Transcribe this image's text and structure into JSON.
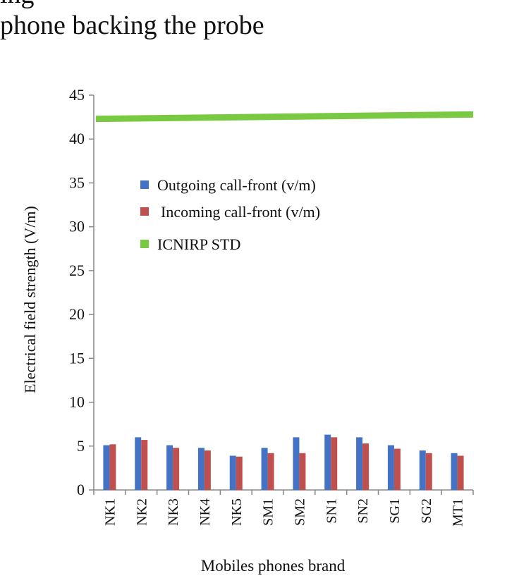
{
  "caption": {
    "line1": "ing",
    "line2": "phone backing the probe"
  },
  "chart_data": {
    "type": "bar",
    "title": "",
    "xlabel": "Mobiles phones brand",
    "ylabel": "Electrical field strength (V/m)",
    "ylim": [
      0,
      45
    ],
    "yticks": [
      0,
      5,
      10,
      15,
      20,
      25,
      30,
      35,
      40,
      45
    ],
    "grid": false,
    "legend_position": "top-left-inside",
    "categories": [
      "NK1",
      "NK2",
      "NK3",
      "NK4",
      "NK5",
      "SM1",
      "SM2",
      "SN1",
      "SN2",
      "SG1",
      "SG2",
      "MT1"
    ],
    "series": [
      {
        "name": "Outgoing call-front (v/m)",
        "color": "#4472C4",
        "values": [
          5.1,
          6.0,
          5.1,
          4.8,
          3.9,
          4.8,
          6.0,
          6.3,
          6.0,
          5.1,
          4.5,
          4.2
        ]
      },
      {
        "name": "Incoming call-front (v/m)",
        "color": "#C0504D",
        "values": [
          5.2,
          5.7,
          4.8,
          4.5,
          3.8,
          4.2,
          4.2,
          6.0,
          5.3,
          4.7,
          4.2,
          3.9
        ]
      }
    ],
    "reference_line": {
      "name": "ICNIRP STD",
      "color": "#7AC943",
      "start": 42.3,
      "end": 42.8
    }
  }
}
